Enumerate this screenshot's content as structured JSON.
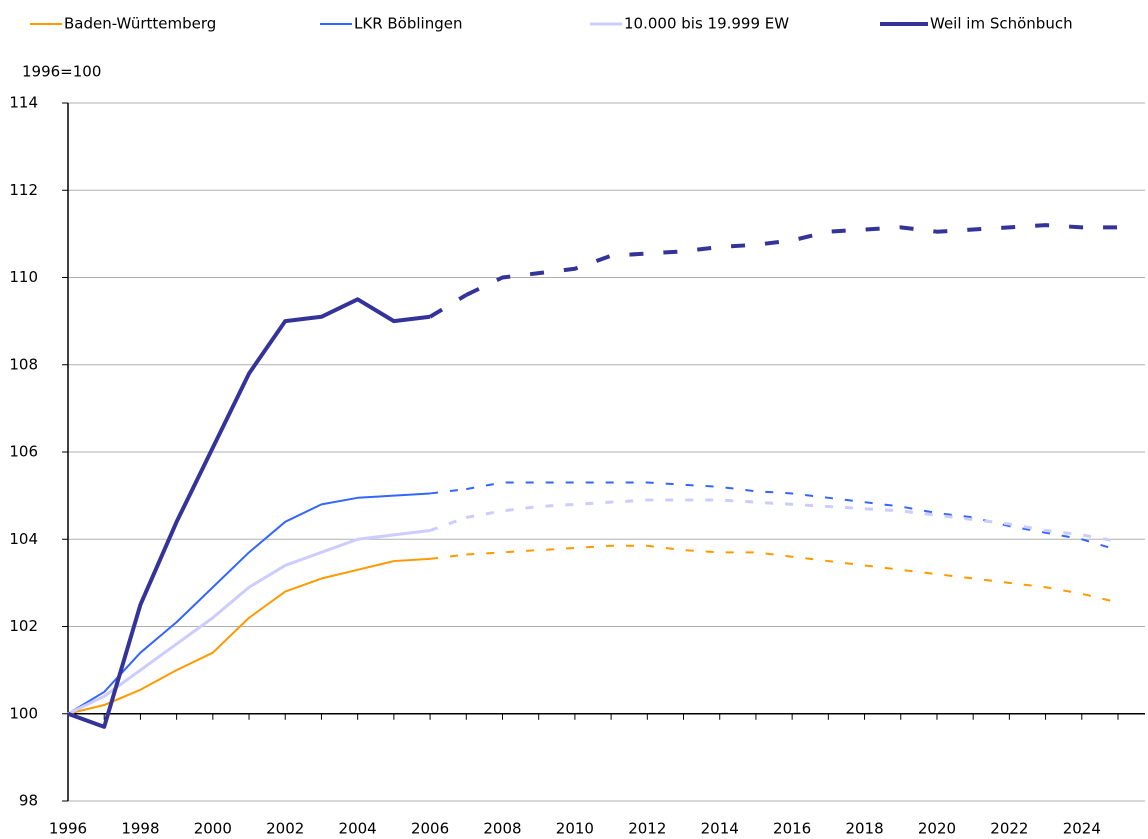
{
  "chart_data": {
    "type": "line",
    "y_label": "1996=100",
    "x": [
      1996,
      1997,
      1998,
      1999,
      2000,
      2001,
      2002,
      2003,
      2004,
      2005,
      2006,
      2007,
      2008,
      2009,
      2010,
      2011,
      2012,
      2013,
      2014,
      2015,
      2016,
      2017,
      2018,
      2019,
      2020,
      2021,
      2022,
      2023,
      2024,
      2025
    ],
    "series": [
      {
        "name": "Baden-Württemberg",
        "color": "#ff9900",
        "width": 2,
        "values": [
          100,
          100.2,
          100.55,
          101.0,
          101.4,
          102.2,
          102.8,
          103.1,
          103.3,
          103.5,
          103.55,
          103.65,
          103.7,
          103.75,
          103.8,
          103.85,
          103.85,
          103.75,
          103.7,
          103.7,
          103.6,
          103.5,
          103.4,
          103.3,
          103.2,
          103.1,
          103.0,
          102.9,
          102.75,
          102.55
        ]
      },
      {
        "name": "LKR Böblingen",
        "color": "#3366ff",
        "width": 2,
        "values": [
          100,
          100.5,
          101.4,
          102.1,
          102.9,
          103.7,
          104.4,
          104.8,
          104.95,
          105.0,
          105.05,
          105.15,
          105.3,
          105.3,
          105.3,
          105.3,
          105.3,
          105.25,
          105.2,
          105.1,
          105.05,
          104.95,
          104.85,
          104.75,
          104.6,
          104.5,
          104.3,
          104.15,
          104.0,
          103.75
        ]
      },
      {
        "name": "10.000 bis 19.999 EW",
        "color": "#ccccff",
        "width": 3,
        "values": [
          100,
          100.4,
          101.0,
          101.6,
          102.2,
          102.9,
          103.4,
          103.7,
          104.0,
          104.1,
          104.2,
          104.5,
          104.65,
          104.75,
          104.8,
          104.85,
          104.9,
          104.9,
          104.9,
          104.85,
          104.8,
          104.75,
          104.7,
          104.65,
          104.55,
          104.45,
          104.35,
          104.2,
          104.1,
          103.95
        ]
      },
      {
        "name": "Weil im Schönbuch",
        "color": "#333399",
        "width": 4,
        "values": [
          100,
          99.7,
          102.5,
          104.4,
          106.1,
          107.8,
          109.0,
          109.1,
          109.5,
          109.0,
          109.1,
          109.6,
          110.0,
          110.1,
          110.2,
          110.5,
          110.55,
          110.6,
          110.7,
          110.75,
          110.85,
          111.05,
          111.1,
          111.15,
          111.05,
          111.1,
          111.15,
          111.2,
          111.15,
          111.15
        ]
      }
    ],
    "dashed_from": 2006,
    "xlim": [
      1996,
      2025
    ],
    "xticks": [
      1996,
      1998,
      2000,
      2002,
      2004,
      2006,
      2008,
      2010,
      2012,
      2014,
      2016,
      2018,
      2020,
      2022,
      2024
    ],
    "ylim": [
      98,
      114
    ],
    "yticks": [
      98,
      100,
      102,
      104,
      106,
      108,
      110,
      112,
      114
    ],
    "grid": true,
    "legend": "top"
  }
}
